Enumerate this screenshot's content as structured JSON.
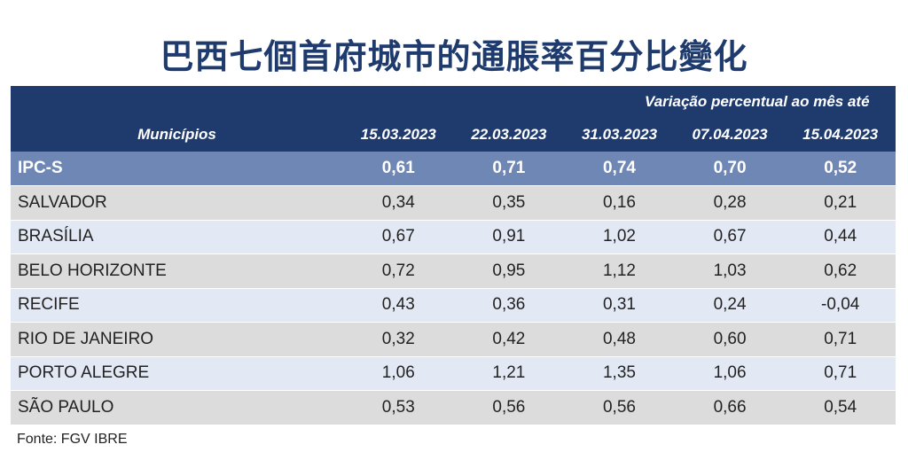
{
  "title": "巴西七個首府城市的通脹率百分比變化",
  "chart_data": {
    "type": "table",
    "header": {
      "group_label": "Variação percentual ao mês até",
      "row_label": "Municípios",
      "columns": [
        "15.03.2023",
        "22.03.2023",
        "31.03.2023",
        "07.04.2023",
        "15.04.2023"
      ]
    },
    "rows": [
      {
        "name": "IPC-S",
        "values": [
          "0,61",
          "0,71",
          "0,74",
          "0,70",
          "0,52"
        ]
      },
      {
        "name": "SALVADOR",
        "values": [
          "0,34",
          "0,35",
          "0,16",
          "0,28",
          "0,21"
        ]
      },
      {
        "name": "BRASÍLIA",
        "values": [
          "0,67",
          "0,91",
          "1,02",
          "0,67",
          "0,44"
        ]
      },
      {
        "name": "BELO HORIZONTE",
        "values": [
          "0,72",
          "0,95",
          "1,12",
          "1,03",
          "0,62"
        ]
      },
      {
        "name": "RECIFE",
        "values": [
          "0,43",
          "0,36",
          "0,31",
          "0,24",
          "-0,04"
        ]
      },
      {
        "name": "RIO DE JANEIRO",
        "values": [
          "0,32",
          "0,42",
          "0,48",
          "0,60",
          "0,71"
        ]
      },
      {
        "name": "PORTO ALEGRE",
        "values": [
          "1,06",
          "1,21",
          "1,35",
          "1,06",
          "0,71"
        ]
      },
      {
        "name": "SÃO PAULO",
        "values": [
          "0,53",
          "0,56",
          "0,56",
          "0,66",
          "0,54"
        ]
      }
    ]
  },
  "source": "Fonte: FGV IBRE",
  "colors": {
    "header_bg": "#1f3b6e",
    "highlight_row": "#6f87b5",
    "row_gray": "#dcdcdc",
    "row_blue": "#e3e9f4",
    "title": "#1f3b6e"
  }
}
